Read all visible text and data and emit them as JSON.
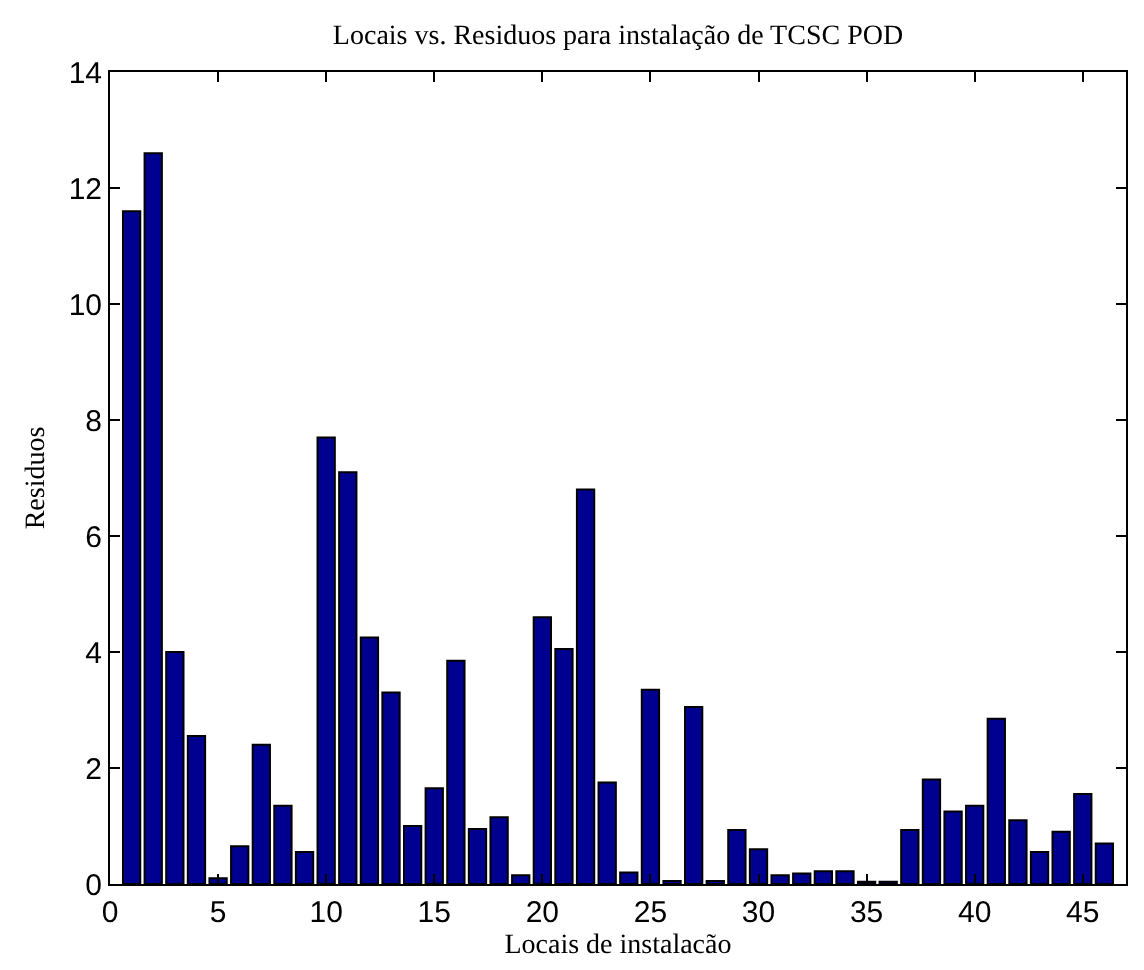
{
  "chart_data": {
    "type": "bar",
    "title": "Locais vs. Residuos para instalação de TCSC POD",
    "xlabel": "Locais de instalacão",
    "ylabel": "Residuos",
    "x": [
      1,
      2,
      3,
      4,
      5,
      6,
      7,
      8,
      9,
      10,
      11,
      12,
      13,
      14,
      15,
      16,
      17,
      18,
      19,
      20,
      21,
      22,
      23,
      24,
      25,
      26,
      27,
      28,
      29,
      30,
      31,
      32,
      33,
      34,
      35,
      36,
      37,
      38,
      39,
      40,
      41,
      42,
      43,
      44,
      45,
      46
    ],
    "values": [
      11.6,
      12.6,
      4.0,
      2.55,
      0.1,
      0.65,
      2.4,
      1.35,
      0.55,
      7.7,
      7.1,
      4.25,
      3.3,
      1.0,
      1.65,
      3.85,
      0.95,
      1.15,
      0.15,
      4.6,
      4.05,
      6.8,
      1.75,
      0.2,
      3.35,
      0.05,
      3.05,
      0.05,
      0.93,
      0.6,
      0.15,
      0.18,
      0.22,
      0.22,
      0.04,
      0.04,
      0.93,
      1.8,
      1.25,
      1.35,
      2.85,
      1.1,
      0.55,
      0.9,
      1.55,
      0.7
    ],
    "color": "#000090",
    "xlim": [
      0,
      47
    ],
    "ylim": [
      0,
      14
    ],
    "xticks": [
      0,
      5,
      10,
      15,
      20,
      25,
      30,
      35,
      40,
      45
    ],
    "yticks": [
      0,
      2,
      4,
      6,
      8,
      10,
      12,
      14
    ]
  }
}
